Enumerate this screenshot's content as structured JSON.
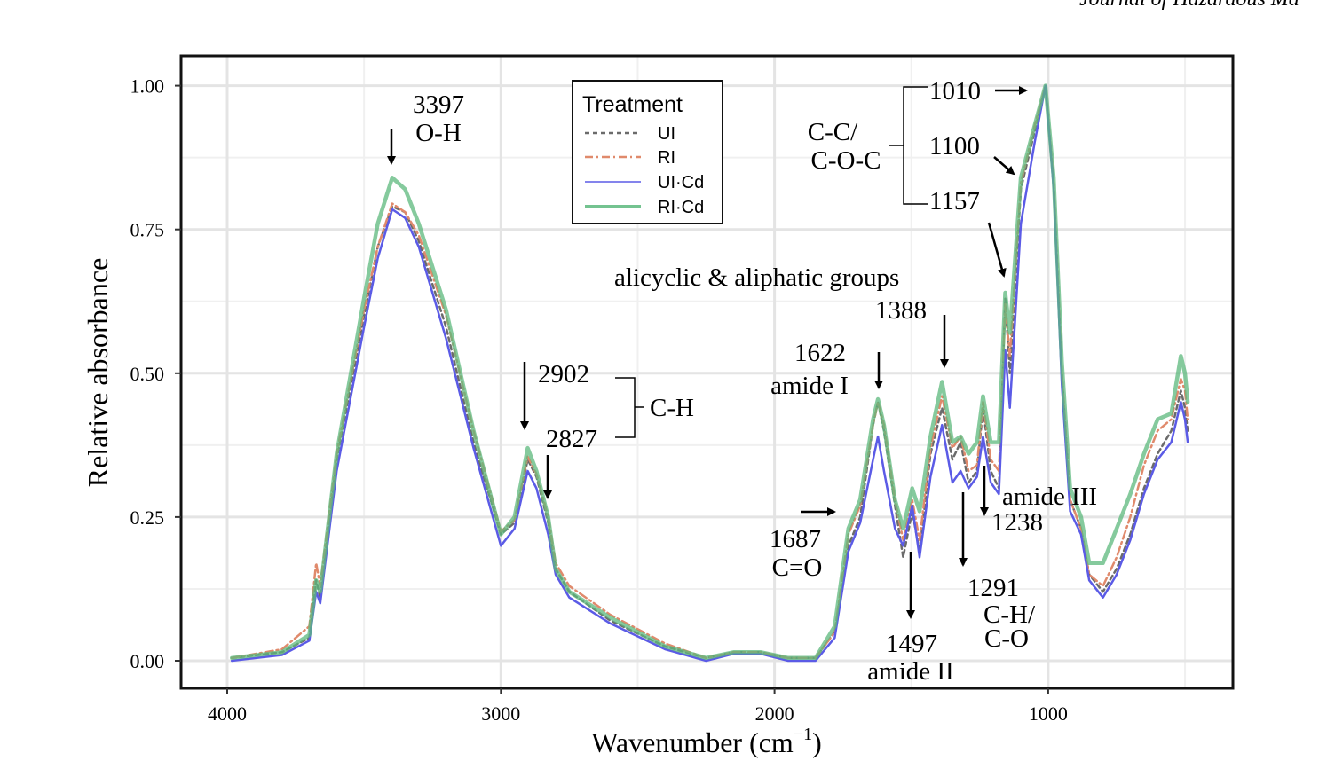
{
  "journal_header": "Journal of Hazardous Ma",
  "chart_data": {
    "type": "line",
    "xlabel": "Wavenumber (cm",
    "xlabel_sup": "−1",
    "xlabel_close": ")",
    "ylabel": "Relative absorbance",
    "x_reversed": true,
    "xlim": [
      4000,
      450
    ],
    "ylim": [
      -0.04,
      1.05
    ],
    "x_ticks": [
      4000,
      3000,
      2000,
      1000
    ],
    "y_ticks": [
      0.0,
      0.25,
      0.5,
      0.75,
      1.0
    ],
    "x_tick_labels": [
      "4000",
      "3000",
      "2000",
      "1000"
    ],
    "y_tick_labels": [
      "0.00",
      "0.25",
      "0.50",
      "0.75",
      "1.00"
    ],
    "grid": true,
    "legend": {
      "title": "Treatment",
      "placement": "top-center",
      "entries": [
        "UI",
        "RI",
        "UI·Cd",
        "RI·Cd"
      ]
    },
    "series": [
      {
        "name": "UI",
        "color": "#6b6b6b",
        "dash": "5,4",
        "width": 2.5,
        "points": [
          [
            3983,
            0.005
          ],
          [
            3800,
            0.015
          ],
          [
            3700,
            0.04
          ],
          [
            3675,
            0.14
          ],
          [
            3660,
            0.11
          ],
          [
            3600,
            0.35
          ],
          [
            3500,
            0.6
          ],
          [
            3450,
            0.72
          ],
          [
            3397,
            0.79
          ],
          [
            3350,
            0.78
          ],
          [
            3300,
            0.73
          ],
          [
            3200,
            0.58
          ],
          [
            3100,
            0.38
          ],
          [
            3000,
            0.22
          ],
          [
            2950,
            0.24
          ],
          [
            2902,
            0.35
          ],
          [
            2870,
            0.32
          ],
          [
            2827,
            0.24
          ],
          [
            2800,
            0.16
          ],
          [
            2750,
            0.12
          ],
          [
            2600,
            0.07
          ],
          [
            2400,
            0.025
          ],
          [
            2250,
            0.005
          ],
          [
            2150,
            0.015
          ],
          [
            2100,
            0.015
          ],
          [
            2050,
            0.015
          ],
          [
            1950,
            0.005
          ],
          [
            1850,
            0.005
          ],
          [
            1780,
            0.05
          ],
          [
            1730,
            0.2
          ],
          [
            1687,
            0.25
          ],
          [
            1640,
            0.41
          ],
          [
            1622,
            0.45
          ],
          [
            1600,
            0.4
          ],
          [
            1560,
            0.27
          ],
          [
            1530,
            0.18
          ],
          [
            1497,
            0.26
          ],
          [
            1470,
            0.19
          ],
          [
            1430,
            0.36
          ],
          [
            1388,
            0.44
          ],
          [
            1350,
            0.35
          ],
          [
            1320,
            0.38
          ],
          [
            1291,
            0.31
          ],
          [
            1260,
            0.33
          ],
          [
            1238,
            0.44
          ],
          [
            1210,
            0.33
          ],
          [
            1180,
            0.3
          ],
          [
            1157,
            0.63
          ],
          [
            1140,
            0.5
          ],
          [
            1100,
            0.82
          ],
          [
            1050,
            0.92
          ],
          [
            1010,
            1.0
          ],
          [
            980,
            0.83
          ],
          [
            950,
            0.5
          ],
          [
            920,
            0.28
          ],
          [
            880,
            0.23
          ],
          [
            850,
            0.15
          ],
          [
            800,
            0.12
          ],
          [
            750,
            0.16
          ],
          [
            700,
            0.22
          ],
          [
            650,
            0.3
          ],
          [
            600,
            0.36
          ],
          [
            550,
            0.4
          ],
          [
            515,
            0.47
          ],
          [
            500,
            0.44
          ],
          [
            490,
            0.4
          ]
        ]
      },
      {
        "name": "RI",
        "color": "#e08a6c",
        "dash": "9,4,2,4",
        "width": 2.5,
        "points": [
          [
            3983,
            0.005
          ],
          [
            3800,
            0.02
          ],
          [
            3700,
            0.06
          ],
          [
            3675,
            0.17
          ],
          [
            3660,
            0.13
          ],
          [
            3600,
            0.36
          ],
          [
            3500,
            0.61
          ],
          [
            3450,
            0.72
          ],
          [
            3397,
            0.795
          ],
          [
            3350,
            0.78
          ],
          [
            3300,
            0.74
          ],
          [
            3200,
            0.6
          ],
          [
            3100,
            0.4
          ],
          [
            3000,
            0.225
          ],
          [
            2950,
            0.245
          ],
          [
            2902,
            0.355
          ],
          [
            2870,
            0.325
          ],
          [
            2827,
            0.25
          ],
          [
            2800,
            0.17
          ],
          [
            2750,
            0.13
          ],
          [
            2600,
            0.08
          ],
          [
            2400,
            0.03
          ],
          [
            2250,
            0.005
          ],
          [
            2150,
            0.015
          ],
          [
            2100,
            0.015
          ],
          [
            2050,
            0.015
          ],
          [
            1950,
            0.005
          ],
          [
            1850,
            0.005
          ],
          [
            1780,
            0.05
          ],
          [
            1730,
            0.22
          ],
          [
            1687,
            0.27
          ],
          [
            1640,
            0.41
          ],
          [
            1622,
            0.45
          ],
          [
            1600,
            0.41
          ],
          [
            1560,
            0.28
          ],
          [
            1530,
            0.21
          ],
          [
            1497,
            0.28
          ],
          [
            1470,
            0.21
          ],
          [
            1430,
            0.37
          ],
          [
            1388,
            0.46
          ],
          [
            1350,
            0.37
          ],
          [
            1320,
            0.39
          ],
          [
            1291,
            0.33
          ],
          [
            1260,
            0.34
          ],
          [
            1238,
            0.45
          ],
          [
            1210,
            0.35
          ],
          [
            1180,
            0.33
          ],
          [
            1157,
            0.62
          ],
          [
            1140,
            0.53
          ],
          [
            1100,
            0.83
          ],
          [
            1050,
            0.93
          ],
          [
            1010,
            1.0
          ],
          [
            980,
            0.83
          ],
          [
            950,
            0.5
          ],
          [
            920,
            0.28
          ],
          [
            880,
            0.23
          ],
          [
            850,
            0.15
          ],
          [
            800,
            0.13
          ],
          [
            750,
            0.18
          ],
          [
            700,
            0.25
          ],
          [
            650,
            0.34
          ],
          [
            600,
            0.4
          ],
          [
            550,
            0.42
          ],
          [
            515,
            0.49
          ],
          [
            500,
            0.47
          ],
          [
            490,
            0.42
          ]
        ]
      },
      {
        "name": "UI·Cd",
        "color": "#5b5be6",
        "dash": "",
        "width": 2.5,
        "points": [
          [
            3983,
            0.0
          ],
          [
            3800,
            0.01
          ],
          [
            3700,
            0.035
          ],
          [
            3675,
            0.12
          ],
          [
            3660,
            0.1
          ],
          [
            3600,
            0.33
          ],
          [
            3500,
            0.58
          ],
          [
            3450,
            0.7
          ],
          [
            3397,
            0.785
          ],
          [
            3350,
            0.77
          ],
          [
            3300,
            0.72
          ],
          [
            3200,
            0.56
          ],
          [
            3100,
            0.37
          ],
          [
            3000,
            0.2
          ],
          [
            2950,
            0.23
          ],
          [
            2902,
            0.33
          ],
          [
            2870,
            0.3
          ],
          [
            2827,
            0.22
          ],
          [
            2800,
            0.15
          ],
          [
            2750,
            0.11
          ],
          [
            2600,
            0.065
          ],
          [
            2400,
            0.02
          ],
          [
            2250,
            0.0
          ],
          [
            2150,
            0.012
          ],
          [
            2100,
            0.012
          ],
          [
            2050,
            0.012
          ],
          [
            1950,
            0.0
          ],
          [
            1850,
            0.0
          ],
          [
            1780,
            0.04
          ],
          [
            1730,
            0.19
          ],
          [
            1687,
            0.24
          ],
          [
            1640,
            0.35
          ],
          [
            1622,
            0.39
          ],
          [
            1600,
            0.33
          ],
          [
            1560,
            0.23
          ],
          [
            1530,
            0.2
          ],
          [
            1497,
            0.27
          ],
          [
            1470,
            0.18
          ],
          [
            1430,
            0.32
          ],
          [
            1388,
            0.41
          ],
          [
            1350,
            0.31
          ],
          [
            1320,
            0.33
          ],
          [
            1291,
            0.3
          ],
          [
            1260,
            0.32
          ],
          [
            1238,
            0.39
          ],
          [
            1210,
            0.31
          ],
          [
            1180,
            0.29
          ],
          [
            1157,
            0.54
          ],
          [
            1140,
            0.44
          ],
          [
            1100,
            0.76
          ],
          [
            1050,
            0.9
          ],
          [
            1010,
            1.0
          ],
          [
            980,
            0.82
          ],
          [
            950,
            0.48
          ],
          [
            920,
            0.26
          ],
          [
            880,
            0.22
          ],
          [
            850,
            0.14
          ],
          [
            800,
            0.11
          ],
          [
            750,
            0.15
          ],
          [
            700,
            0.21
          ],
          [
            650,
            0.29
          ],
          [
            600,
            0.35
          ],
          [
            550,
            0.38
          ],
          [
            515,
            0.45
          ],
          [
            500,
            0.42
          ],
          [
            490,
            0.38
          ]
        ]
      },
      {
        "name": "RI·Cd",
        "color": "#5cb87c",
        "dash": "",
        "width": 4.5,
        "opacity": 0.75,
        "points": [
          [
            3983,
            0.005
          ],
          [
            3800,
            0.015
          ],
          [
            3700,
            0.045
          ],
          [
            3675,
            0.14
          ],
          [
            3660,
            0.12
          ],
          [
            3600,
            0.36
          ],
          [
            3500,
            0.63
          ],
          [
            3450,
            0.76
          ],
          [
            3397,
            0.84
          ],
          [
            3350,
            0.82
          ],
          [
            3300,
            0.76
          ],
          [
            3200,
            0.61
          ],
          [
            3100,
            0.4
          ],
          [
            3000,
            0.22
          ],
          [
            2950,
            0.25
          ],
          [
            2902,
            0.37
          ],
          [
            2870,
            0.33
          ],
          [
            2827,
            0.25
          ],
          [
            2800,
            0.16
          ],
          [
            2750,
            0.12
          ],
          [
            2600,
            0.075
          ],
          [
            2400,
            0.025
          ],
          [
            2250,
            0.005
          ],
          [
            2150,
            0.015
          ],
          [
            2100,
            0.015
          ],
          [
            2050,
            0.015
          ],
          [
            1950,
            0.005
          ],
          [
            1850,
            0.005
          ],
          [
            1780,
            0.06
          ],
          [
            1730,
            0.23
          ],
          [
            1687,
            0.28
          ],
          [
            1640,
            0.42
          ],
          [
            1622,
            0.455
          ],
          [
            1600,
            0.41
          ],
          [
            1560,
            0.28
          ],
          [
            1530,
            0.23
          ],
          [
            1497,
            0.3
          ],
          [
            1470,
            0.26
          ],
          [
            1430,
            0.39
          ],
          [
            1388,
            0.485
          ],
          [
            1350,
            0.38
          ],
          [
            1320,
            0.39
          ],
          [
            1291,
            0.36
          ],
          [
            1260,
            0.38
          ],
          [
            1238,
            0.46
          ],
          [
            1210,
            0.38
          ],
          [
            1180,
            0.38
          ],
          [
            1157,
            0.64
          ],
          [
            1140,
            0.57
          ],
          [
            1100,
            0.84
          ],
          [
            1050,
            0.93
          ],
          [
            1010,
            1.0
          ],
          [
            980,
            0.84
          ],
          [
            950,
            0.52
          ],
          [
            920,
            0.3
          ],
          [
            880,
            0.25
          ],
          [
            850,
            0.17
          ],
          [
            800,
            0.17
          ],
          [
            750,
            0.23
          ],
          [
            700,
            0.29
          ],
          [
            650,
            0.36
          ],
          [
            600,
            0.42
          ],
          [
            550,
            0.43
          ],
          [
            515,
            0.53
          ],
          [
            500,
            0.5
          ],
          [
            490,
            0.45
          ]
        ]
      }
    ],
    "annotations": [
      {
        "lines": [
          "3397",
          "O-H"
        ]
      },
      {
        "lines": [
          "2902"
        ]
      },
      {
        "lines": [
          "2827"
        ]
      },
      {
        "lines": [
          "C-H"
        ]
      },
      {
        "lines": [
          "1687",
          "C=O"
        ]
      },
      {
        "lines": [
          "1622",
          "amide I"
        ]
      },
      {
        "lines": [
          "1497",
          "amide II"
        ]
      },
      {
        "lines": [
          "1388"
        ]
      },
      {
        "lines": [
          "alicyclic & aliphatic groups"
        ]
      },
      {
        "lines": [
          "1291",
          "C-H/",
          "C-O"
        ]
      },
      {
        "lines": [
          "amide III"
        ]
      },
      {
        "lines": [
          "1238"
        ]
      },
      {
        "lines": [
          "1010"
        ]
      },
      {
        "lines": [
          "1100"
        ]
      },
      {
        "lines": [
          "1157"
        ]
      },
      {
        "lines": [
          "C-C/",
          "C-O-C"
        ]
      }
    ]
  }
}
